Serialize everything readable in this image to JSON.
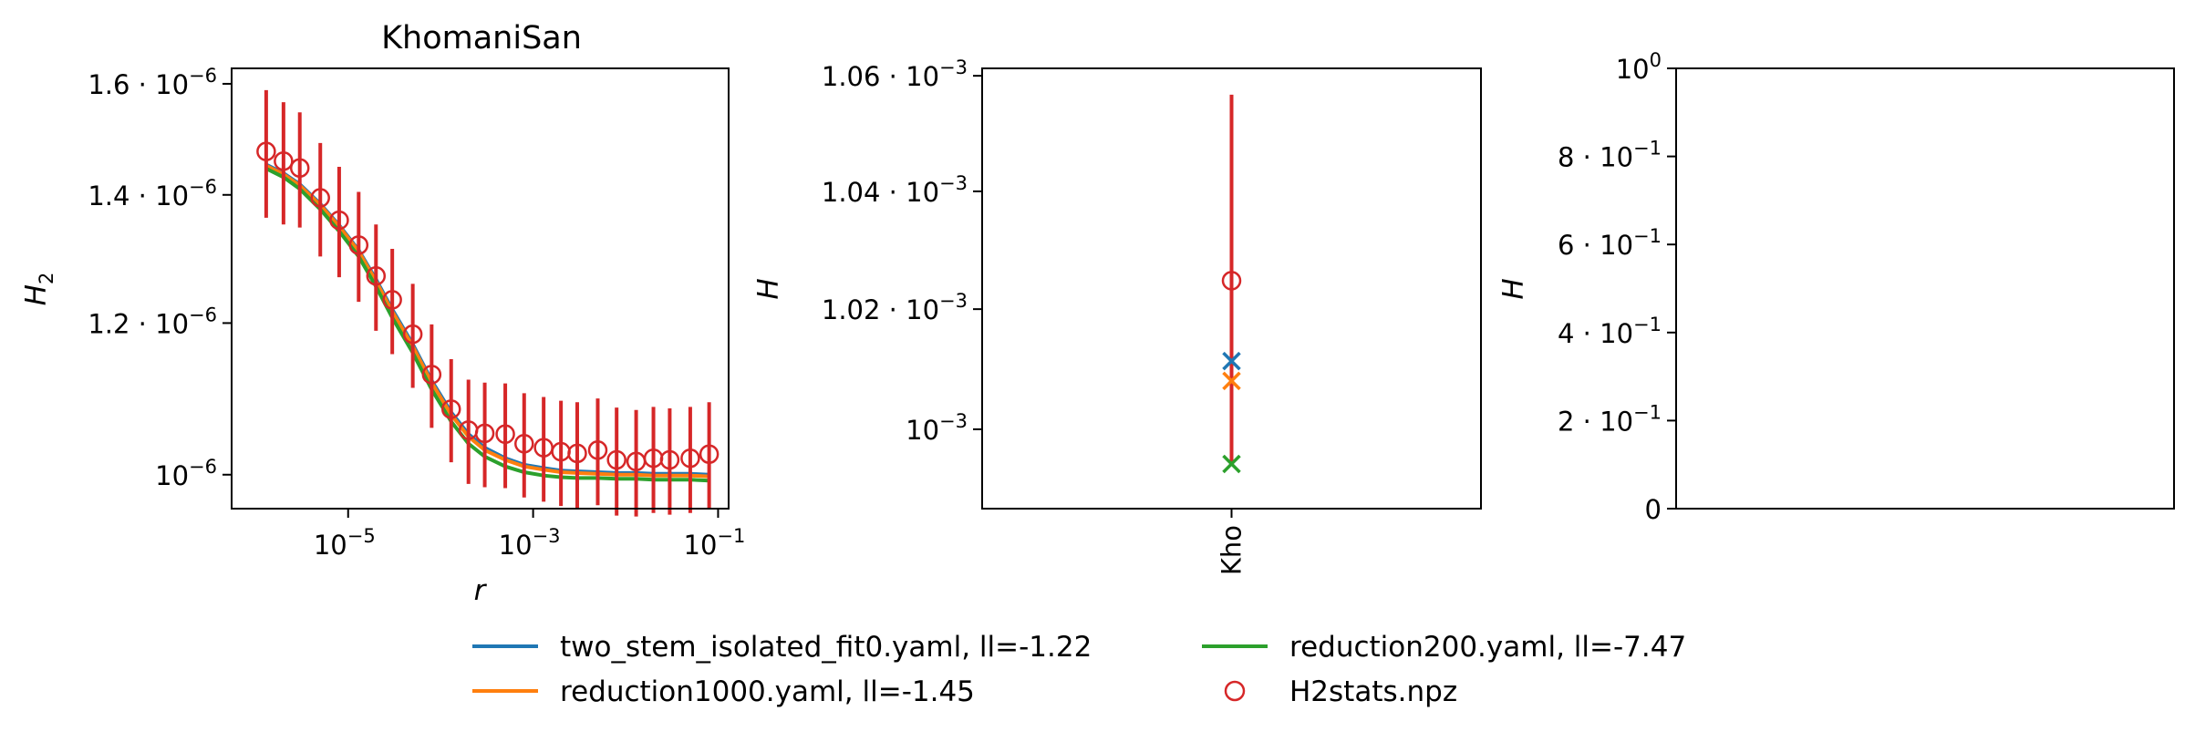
{
  "colors": {
    "blue": "#1f77b4",
    "orange": "#ff7f0e",
    "green": "#2ca02c",
    "red": "#d62728"
  },
  "legend": {
    "placement": "below",
    "entries": [
      {
        "label": "two_stem_isolated_fit0.yaml, ll=-1.22",
        "marker": "line",
        "color": "#1f77b4"
      },
      {
        "label": "reduction1000.yaml, ll=-1.45",
        "marker": "line",
        "color": "#ff7f0e"
      },
      {
        "label": "reduction200.yaml, ll=-7.47",
        "marker": "line",
        "color": "#2ca02c"
      },
      {
        "label": "H2stats.npz",
        "marker": "circle",
        "color": "#d62728"
      }
    ]
  },
  "chart_data": [
    {
      "type": "line",
      "title": "KhomaniSan",
      "xlabel": "r",
      "ylabel": "H_2",
      "xscale": "log",
      "yscale": "log",
      "xlim": [
        5.5e-07,
        0.13
      ],
      "ylim": [
        9.6e-07,
        1.63e-06
      ],
      "xticks": [
        {
          "value": 1e-05,
          "base": "10",
          "exp": "−5"
        },
        {
          "value": 0.001,
          "base": "10",
          "exp": "−3"
        },
        {
          "value": 0.1,
          "base": "10",
          "exp": "−1"
        }
      ],
      "yticks": [
        {
          "value": 1e-06,
          "mant": "",
          "base": "10",
          "exp": "−6"
        },
        {
          "value": 1.2e-06,
          "mant": "1.2 · ",
          "base": "10",
          "exp": "−6"
        },
        {
          "value": 1.4e-06,
          "mant": "1.4 · ",
          "base": "10",
          "exp": "−6"
        },
        {
          "value": 1.6e-06,
          "mant": "1.6 · ",
          "base": "10",
          "exp": "−6"
        }
      ],
      "x": [
        1.3e-06,
        2e-06,
        3e-06,
        5e-06,
        8e-06,
        1.3e-05,
        2e-05,
        3e-05,
        5e-05,
        8e-05,
        0.00013,
        0.0002,
        0.0003,
        0.0005,
        0.0008,
        0.0013,
        0.002,
        0.003,
        0.005,
        0.008,
        0.013,
        0.02,
        0.03,
        0.05,
        0.08
      ],
      "series": [
        {
          "name": "two_stem_isolated_fit0.yaml, ll=-1.22",
          "color": "#1f77b4",
          "values": [
            1.452e-06,
            1.437e-06,
            1.418e-06,
            1.385e-06,
            1.35e-06,
            1.31e-06,
            1.265e-06,
            1.22e-06,
            1.17e-06,
            1.12e-06,
            1.078e-06,
            1.05e-06,
            1.033e-06,
            1.02e-06,
            1.012e-06,
            1.008e-06,
            1.005e-06,
            1.004e-06,
            1.003e-06,
            1.002e-06,
            1.002e-06,
            1.001e-06,
            1.001e-06,
            1.001e-06,
            1e-06
          ]
        },
        {
          "name": "reduction1000.yaml, ll=-1.45",
          "color": "#ff7f0e",
          "values": [
            1.45e-06,
            1.435e-06,
            1.416e-06,
            1.383e-06,
            1.348e-06,
            1.308e-06,
            1.262e-06,
            1.217e-06,
            1.167e-06,
            1.117e-06,
            1.075e-06,
            1.047e-06,
            1.03e-06,
            1.018e-06,
            1.01e-06,
            1.006e-06,
            1.003e-06,
            1.002e-06,
            1.001e-06,
            1e-06,
            1e-06,
            9.99e-07,
            9.99e-07,
            9.99e-07,
            9.98e-07
          ]
        },
        {
          "name": "reduction200.yaml, ll=-7.47",
          "color": "#2ca02c",
          "values": [
            1.445e-06,
            1.43e-06,
            1.41e-06,
            1.376e-06,
            1.34e-06,
            1.3e-06,
            1.254e-06,
            1.208e-06,
            1.158e-06,
            1.108e-06,
            1.066e-06,
            1.038e-06,
            1.022e-06,
            1.01e-06,
            1.003e-06,
            9.99e-07,
            9.97e-07,
            9.96e-07,
            9.96e-07,
            9.95e-07,
            9.95e-07,
            9.94e-07,
            9.94e-07,
            9.94e-07,
            9.93e-07
          ]
        },
        {
          "name": "H2stats.npz",
          "color": "#d62728",
          "marker": "circle",
          "values": [
            1.475e-06,
            1.458e-06,
            1.446e-06,
            1.395e-06,
            1.358e-06,
            1.318e-06,
            1.27e-06,
            1.234e-06,
            1.184e-06,
            1.128e-06,
            1.082e-06,
            1.055e-06,
            1.051e-06,
            1.05e-06,
            1.038e-06,
            1.033e-06,
            1.028e-06,
            1.026e-06,
            1.03e-06,
            1.018e-06,
            1.016e-06,
            1.02e-06,
            1.018e-06,
            1.02e-06,
            1.025e-06
          ],
          "errors": [
            1.13e-07,
            1.07e-07,
            1e-07,
            9.5e-08,
            9e-08,
            8.7e-08,
            8.1e-08,
            7.8e-08,
            7.4e-08,
            7e-08,
            6.7e-08,
            6.6e-08,
            6.6e-08,
            6.6e-08,
            6.5e-08,
            6.5e-08,
            6.5e-08,
            6.5e-08,
            6.6e-08,
            6.6e-08,
            6.5e-08,
            6.5e-08,
            6.5e-08,
            6.5e-08,
            6.6e-08
          ]
        }
      ]
    },
    {
      "type": "scatter",
      "ylabel": "H",
      "yscale": "log",
      "ylim": [
        0.000987,
        0.0010613
      ],
      "categories": [
        "Kho"
      ],
      "yticks": [
        {
          "value": 0.001,
          "mant": "",
          "base": "10",
          "exp": "−3"
        },
        {
          "value": 0.00102,
          "mant": "1.02 · ",
          "base": "10",
          "exp": "−3"
        },
        {
          "value": 0.00104,
          "mant": "1.04 · ",
          "base": "10",
          "exp": "−3"
        },
        {
          "value": 0.00106,
          "mant": "1.06 · ",
          "base": "10",
          "exp": "−3"
        }
      ],
      "series": [
        {
          "name": "two_stem_isolated_fit0.yaml, ll=-1.22",
          "color": "#1f77b4",
          "marker": "x",
          "values": [
            0.0010113
          ]
        },
        {
          "name": "reduction1000.yaml, ll=-1.45",
          "color": "#ff7f0e",
          "marker": "x",
          "values": [
            0.001008
          ]
        },
        {
          "name": "reduction200.yaml, ll=-7.47",
          "color": "#2ca02c",
          "marker": "x",
          "values": [
            0.0009943
          ]
        },
        {
          "name": "H2stats.npz",
          "color": "#d62728",
          "marker": "circle",
          "values": [
            0.0010248
          ],
          "err_low": [
            0.0009943
          ],
          "err_high": [
            0.0010567
          ]
        }
      ]
    },
    {
      "type": "scatter",
      "ylabel": "H",
      "ylim": [
        0,
        1
      ],
      "yticks": [
        {
          "value": 0,
          "mant": "0",
          "base": "",
          "exp": ""
        },
        {
          "value": 0.2,
          "mant": "2 · ",
          "base": "10",
          "exp": "−1"
        },
        {
          "value": 0.4,
          "mant": "4 · ",
          "base": "10",
          "exp": "−1"
        },
        {
          "value": 0.6,
          "mant": "6 · ",
          "base": "10",
          "exp": "−1"
        },
        {
          "value": 0.8,
          "mant": "8 · ",
          "base": "10",
          "exp": "−1"
        },
        {
          "value": 1.0,
          "mant": "",
          "base": "10",
          "exp": "0"
        }
      ],
      "series": []
    }
  ]
}
